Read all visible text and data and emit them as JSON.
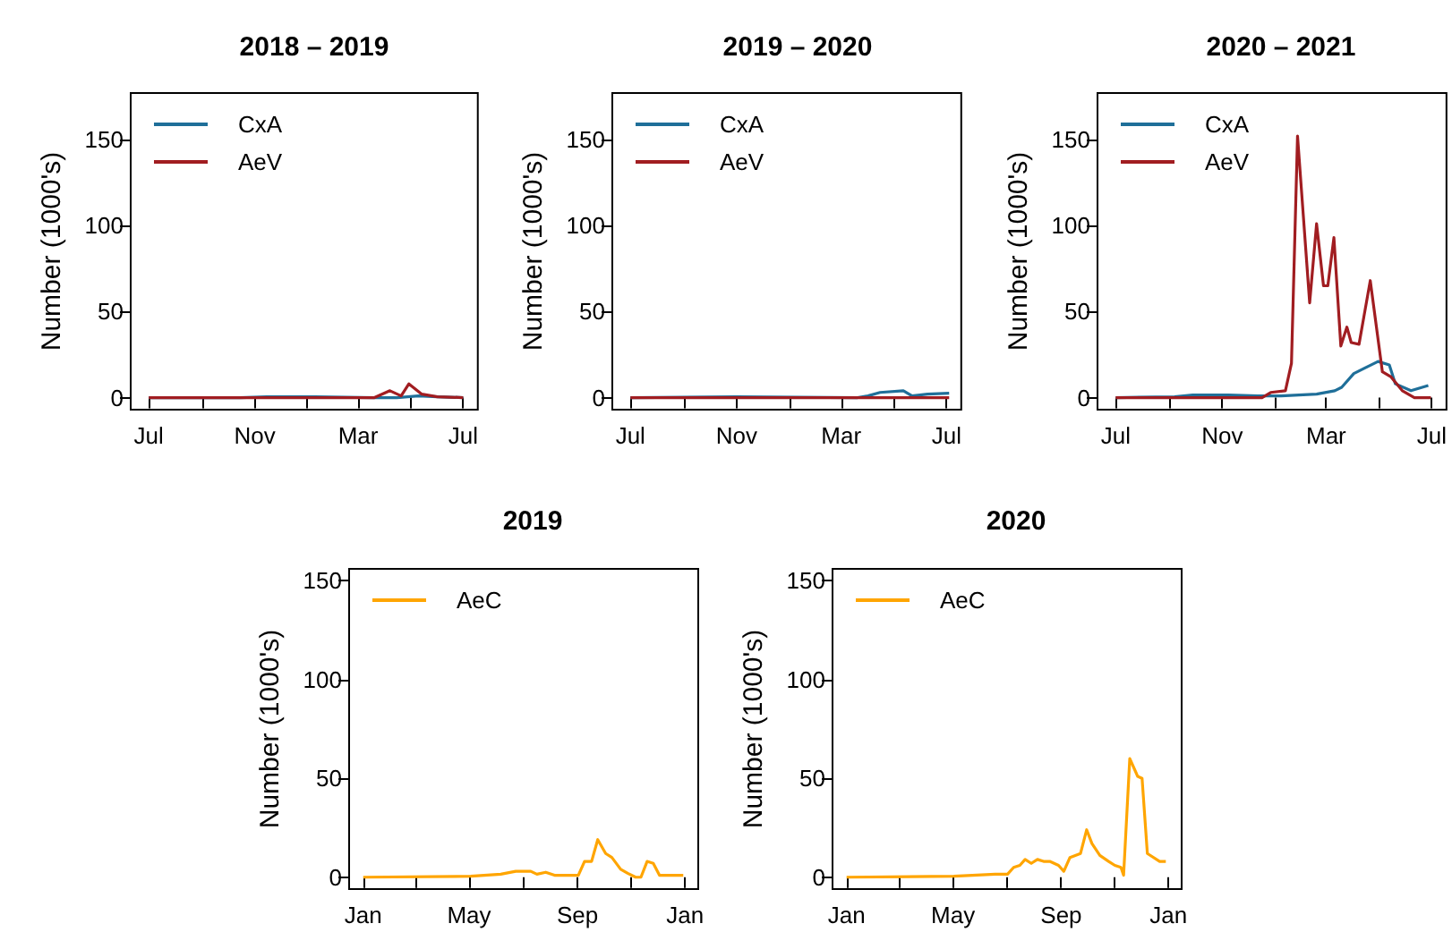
{
  "chart_data": [
    {
      "type": "line",
      "title": "2018 – 2019",
      "ylabel": "Number (1000's)",
      "legend": "top left",
      "grid": false,
      "marker": "none",
      "line_style": "solid",
      "xlim": [
        "2018-06-10",
        "2019-07-18"
      ],
      "xticks": [
        {
          "value": "2018-07-01",
          "label": "Jul"
        },
        {
          "value": "2018-09-01",
          "label": null
        },
        {
          "value": "2018-11-01",
          "label": "Nov"
        },
        {
          "value": "2019-01-01",
          "label": null
        },
        {
          "value": "2019-03-01",
          "label": "Mar"
        },
        {
          "value": "2019-05-01",
          "label": null
        },
        {
          "value": "2019-07-01",
          "label": "Jul"
        }
      ],
      "ylim": [
        -7,
        177
      ],
      "yticks": [
        0,
        50,
        100,
        150
      ],
      "series": [
        {
          "name": "CxA",
          "color": "#1f6f99",
          "x": [
            "2018-07-01",
            "2018-10-15",
            "2018-11-15",
            "2019-01-10",
            "2019-03-20",
            "2019-04-15",
            "2019-05-10",
            "2019-06-01",
            "2019-07-01"
          ],
          "values": [
            0,
            0,
            0.5,
            0.5,
            0,
            0,
            1,
            0.5,
            0
          ]
        },
        {
          "name": "AeV",
          "color": "#a11d21",
          "x": [
            "2018-07-01",
            "2019-03-20",
            "2019-04-07",
            "2019-04-20",
            "2019-04-29",
            "2019-05-14",
            "2019-06-01",
            "2019-07-01"
          ],
          "values": [
            0,
            0,
            4,
            1,
            8,
            2,
            0.5,
            0
          ]
        }
      ]
    },
    {
      "type": "line",
      "title": "2019 – 2020",
      "ylabel": "Number (1000's)",
      "legend": "top left",
      "grid": false,
      "marker": "none",
      "line_style": "solid",
      "xlim": [
        "2019-06-10",
        "2020-07-18"
      ],
      "xticks": [
        {
          "value": "2019-07-01",
          "label": "Jul"
        },
        {
          "value": "2019-09-01",
          "label": null
        },
        {
          "value": "2019-11-01",
          "label": "Nov"
        },
        {
          "value": "2020-01-01",
          "label": null
        },
        {
          "value": "2020-03-01",
          "label": "Mar"
        },
        {
          "value": "2020-05-01",
          "label": null
        },
        {
          "value": "2020-07-01",
          "label": "Jul"
        }
      ],
      "ylim": [
        -7,
        177
      ],
      "yticks": [
        0,
        50,
        100,
        150
      ],
      "series": [
        {
          "name": "CxA",
          "color": "#1f6f99",
          "x": [
            "2019-07-01",
            "2019-11-01",
            "2020-03-20",
            "2020-04-01",
            "2020-04-15",
            "2020-05-12",
            "2020-05-22",
            "2020-06-09",
            "2020-07-04"
          ],
          "values": [
            0,
            0.5,
            0,
            1,
            3,
            4,
            1,
            2,
            2.5
          ]
        },
        {
          "name": "AeV",
          "color": "#a11d21",
          "x": [
            "2019-07-01",
            "2020-03-01",
            "2020-07-04"
          ],
          "values": [
            0,
            0,
            0
          ]
        }
      ]
    },
    {
      "type": "line",
      "title": "2020 – 2021",
      "ylabel": "Number (1000's)",
      "legend": "top left",
      "grid": false,
      "marker": "none",
      "line_style": "solid",
      "xlim": [
        "2020-06-10",
        "2021-07-18"
      ],
      "xticks": [
        {
          "value": "2020-07-01",
          "label": "Jul"
        },
        {
          "value": "2020-09-01",
          "label": null
        },
        {
          "value": "2020-11-01",
          "label": "Nov"
        },
        {
          "value": "2021-01-01",
          "label": null
        },
        {
          "value": "2021-03-01",
          "label": "Mar"
        },
        {
          "value": "2021-05-01",
          "label": null
        },
        {
          "value": "2021-07-01",
          "label": "Jul"
        }
      ],
      "ylim": [
        -7,
        177
      ],
      "yticks": [
        0,
        50,
        100,
        150
      ],
      "series": [
        {
          "name": "CxA",
          "color": "#1f6f99",
          "x": [
            "2020-07-01",
            "2020-09-07",
            "2020-09-28",
            "2020-11-08",
            "2020-12-12",
            "2021-01-08",
            "2021-02-18",
            "2021-03-11",
            "2021-03-19",
            "2021-04-02",
            "2021-04-18",
            "2021-04-30",
            "2021-05-13",
            "2021-05-20",
            "2021-06-07",
            "2021-06-27"
          ],
          "values": [
            0,
            0.5,
            1.5,
            1.5,
            1,
            1,
            2,
            4,
            6,
            14,
            18,
            21,
            19,
            8,
            4,
            7
          ]
        },
        {
          "name": "AeV",
          "color": "#a11d21",
          "x": [
            "2020-07-01",
            "2020-12-17",
            "2020-12-27",
            "2021-01-13",
            "2021-01-20",
            "2021-01-27",
            "2021-02-10",
            "2021-02-18",
            "2021-02-26",
            "2021-03-03",
            "2021-03-10",
            "2021-03-18",
            "2021-03-25",
            "2021-03-30",
            "2021-04-08",
            "2021-04-21",
            "2021-05-05",
            "2021-05-15",
            "2021-05-28",
            "2021-06-11",
            "2021-06-30"
          ],
          "values": [
            0,
            0,
            3,
            4,
            20,
            152,
            55,
            101,
            65,
            65,
            93,
            30,
            41,
            32,
            31,
            68,
            15,
            12,
            4,
            0,
            0
          ]
        }
      ]
    },
    {
      "type": "line",
      "title": "2019",
      "ylabel": "Number (1000's)",
      "legend": "top left",
      "grid": false,
      "marker": "none",
      "line_style": "solid",
      "xlim": [
        "2018-12-16",
        "2020-01-16"
      ],
      "xticks": [
        {
          "value": "2019-01-01",
          "label": "Jan"
        },
        {
          "value": "2019-03-01",
          "label": null
        },
        {
          "value": "2019-05-01",
          "label": "May"
        },
        {
          "value": "2019-07-01",
          "label": null
        },
        {
          "value": "2019-09-01",
          "label": "Sep"
        },
        {
          "value": "2019-11-01",
          "label": null
        },
        {
          "value": "2020-01-01",
          "label": "Jan"
        }
      ],
      "ylim": [
        -6,
        156
      ],
      "yticks": [
        0,
        50,
        100,
        150
      ],
      "series": [
        {
          "name": "AeC",
          "color": "#ffa500",
          "x": [
            "2019-01-01",
            "2019-05-03",
            "2019-06-06",
            "2019-06-23",
            "2019-07-10",
            "2019-07-17",
            "2019-07-27",
            "2019-08-06",
            "2019-09-02",
            "2019-09-09",
            "2019-09-17",
            "2019-09-24",
            "2019-10-03",
            "2019-10-10",
            "2019-10-20",
            "2019-10-28",
            "2019-11-06",
            "2019-11-12",
            "2019-11-19",
            "2019-11-26",
            "2019-12-03",
            "2019-12-30"
          ],
          "values": [
            0,
            0.5,
            1.5,
            3,
            3,
            1.5,
            2.5,
            1,
            1,
            8,
            8,
            19,
            12,
            10,
            4,
            2,
            0,
            0,
            8,
            7,
            1,
            1
          ]
        }
      ]
    },
    {
      "type": "line",
      "title": "2020",
      "ylabel": "Number (1000's)",
      "legend": "top left",
      "grid": false,
      "marker": "none",
      "line_style": "solid",
      "xlim": [
        "2019-12-16",
        "2021-01-16"
      ],
      "xticks": [
        {
          "value": "2020-01-01",
          "label": "Jan"
        },
        {
          "value": "2020-03-01",
          "label": null
        },
        {
          "value": "2020-05-01",
          "label": "May"
        },
        {
          "value": "2020-07-01",
          "label": null
        },
        {
          "value": "2020-09-01",
          "label": "Sep"
        },
        {
          "value": "2020-11-01",
          "label": null
        },
        {
          "value": "2021-01-01",
          "label": "Jan"
        }
      ],
      "ylim": [
        -6,
        156
      ],
      "yticks": [
        0,
        50,
        100,
        150
      ],
      "series": [
        {
          "name": "AeC",
          "color": "#ffa500",
          "x": [
            "2020-01-01",
            "2020-05-02",
            "2020-06-18",
            "2020-07-02",
            "2020-07-09",
            "2020-07-16",
            "2020-07-22",
            "2020-07-29",
            "2020-08-05",
            "2020-08-12",
            "2020-08-19",
            "2020-08-29",
            "2020-09-04",
            "2020-09-11",
            "2020-09-23",
            "2020-09-30",
            "2020-10-06",
            "2020-10-15",
            "2020-10-25",
            "2020-11-01",
            "2020-11-08",
            "2020-11-11",
            "2020-11-18",
            "2020-11-27",
            "2020-12-02",
            "2020-12-08",
            "2020-12-22",
            "2020-12-29"
          ],
          "values": [
            0,
            0.5,
            1.5,
            1.5,
            5,
            6,
            9,
            7,
            9,
            8,
            8,
            6,
            3,
            10,
            12,
            24,
            17,
            11,
            8,
            6,
            5,
            1,
            60,
            51,
            50,
            12,
            8,
            8
          ]
        }
      ]
    }
  ]
}
